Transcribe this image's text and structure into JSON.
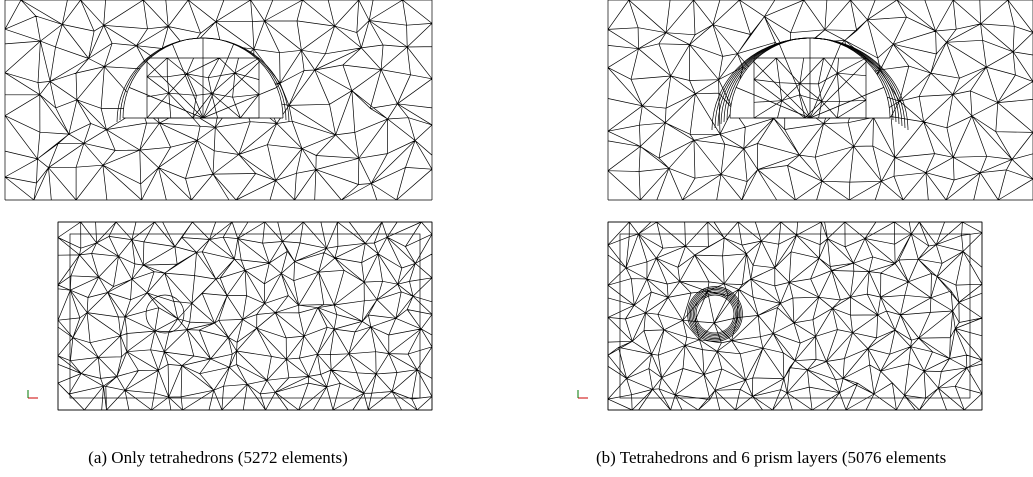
{
  "figure": {
    "panels": [
      {
        "caption": "(a) Only tetrahedrons (5272 elements)"
      },
      {
        "caption": "(b) Tetrahedrons and 6 prism layers (5076 elements"
      }
    ]
  }
}
